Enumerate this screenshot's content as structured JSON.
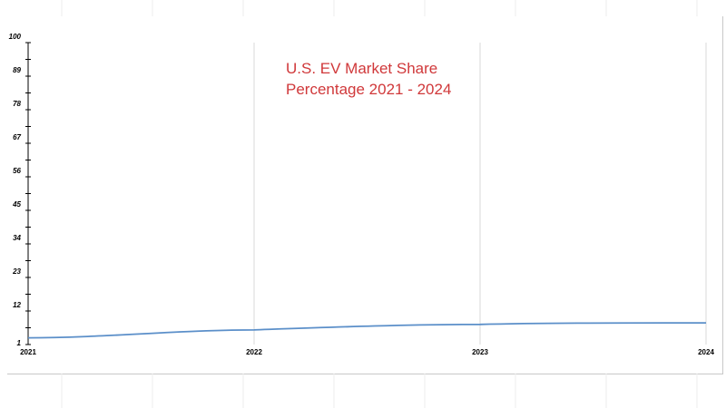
{
  "chart_data": {
    "type": "line",
    "title_line1": "U.S. EV Market Share",
    "title_line2": "Percentage 2021 - 2024",
    "x": [
      "2021",
      "2022",
      "2023",
      "2024"
    ],
    "series": [
      {
        "values": [
          3.2,
          5.8,
          7.6,
          8.1
        ],
        "color": "#5b8fc9"
      }
    ],
    "ylim": [
      1,
      100
    ],
    "yticks": [
      "1",
      "12",
      "23",
      "34",
      "45",
      "56",
      "67",
      "78",
      "89",
      "100"
    ],
    "grid": "vertical lines at x categories",
    "title_color": "#d0383a"
  }
}
